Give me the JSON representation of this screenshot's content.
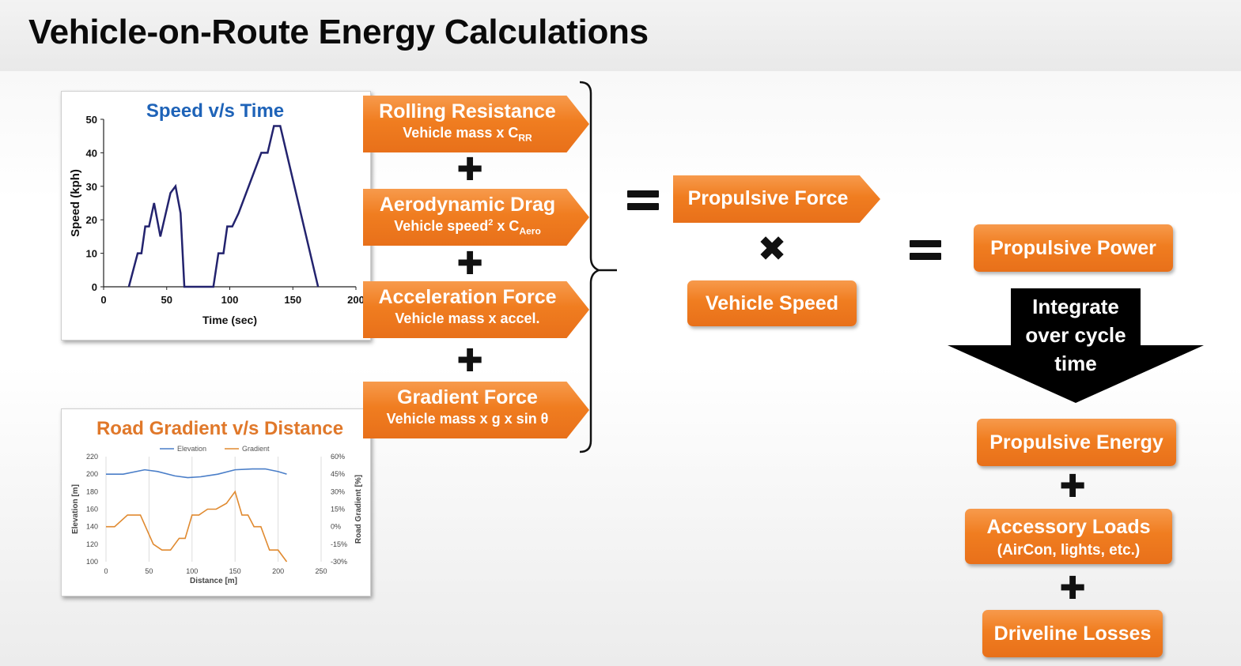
{
  "slide_title": "Vehicle-on-Route Energy Calculations",
  "speed_chart": {
    "chart_data": {
      "type": "line",
      "title": "Speed v/s Time",
      "xlabel": "Time (sec)",
      "ylabel": "Speed (kph)",
      "xlim": [
        0,
        200
      ],
      "ylim": [
        0,
        50
      ],
      "x_ticks": [
        "0",
        "50",
        "100",
        "150",
        "200"
      ],
      "y_ticks": [
        "0",
        "10",
        "20",
        "30",
        "40",
        "50"
      ],
      "series": [
        {
          "x": [
            20,
            27,
            30,
            33,
            36,
            40,
            45,
            53,
            57,
            61,
            64,
            75,
            87,
            91,
            95,
            98,
            102,
            107,
            115,
            125,
            130,
            135,
            140,
            170
          ],
          "y": [
            0,
            10,
            10,
            18,
            18,
            25,
            15,
            28,
            30,
            22,
            0,
            0,
            0,
            10,
            10,
            18,
            18,
            22,
            30,
            40,
            40,
            48,
            48,
            0
          ]
        }
      ],
      "color": "#23236e"
    }
  },
  "gradient_chart": {
    "chart_data": {
      "type": "line",
      "title": "Road Gradient v/s Distance",
      "xlabel": "Distance [m]",
      "ylabel": "Elevation [m]",
      "y2label": "Road Gradient [%]",
      "xlim": [
        0,
        250
      ],
      "ylim": [
        100,
        220
      ],
      "y2lim": [
        -30,
        60
      ],
      "x_ticks": [
        "0",
        "50",
        "100",
        "150",
        "200",
        "250"
      ],
      "y_ticks": [
        "100",
        "120",
        "140",
        "160",
        "180",
        "200",
        "220"
      ],
      "y2_ticks": [
        "-30%",
        "-15%",
        "0%",
        "15%",
        "30%",
        "45%",
        "60%"
      ],
      "legend_position": "top",
      "series": [
        {
          "name": "Elevation",
          "color": "#4a7ec8",
          "x": [
            0,
            20,
            45,
            60,
            80,
            95,
            110,
            130,
            150,
            170,
            185,
            200,
            210
          ],
          "y": [
            200,
            200,
            205,
            203,
            198,
            196,
            197,
            200,
            205,
            206,
            206,
            203,
            200
          ]
        },
        {
          "name": "Gradient",
          "color": "#e08a30",
          "y_axis": "right",
          "x": [
            0,
            10,
            25,
            40,
            55,
            65,
            75,
            85,
            92,
            100,
            108,
            118,
            128,
            140,
            150,
            158,
            165,
            172,
            180,
            190,
            200,
            210
          ],
          "y": [
            0,
            0,
            10,
            10,
            -15,
            -20,
            -20,
            -10,
            -10,
            10,
            10,
            15,
            15,
            20,
            30,
            10,
            10,
            0,
            0,
            -20,
            -20,
            -30
          ]
        }
      ]
    }
  },
  "forces": [
    {
      "title": "Rolling Resistance",
      "formula": "Vehicle mass x C",
      "subscript": "RR"
    },
    {
      "title": "Aerodynamic Drag",
      "formula": "Vehicle speed",
      "superscript": "2",
      "formula_tail": " x C",
      "subscript": "Aero"
    },
    {
      "title": "Acceleration Force",
      "formula": "Vehicle mass x accel."
    },
    {
      "title": "Gradient Force",
      "formula": "Vehicle mass x g x sin θ"
    }
  ],
  "operators": {
    "plus": "✚",
    "times": "✖"
  },
  "propulsive_force": "Propulsive Force",
  "vehicle_speed": "Vehicle Speed",
  "propulsive_power": "Propulsive Power",
  "integrate_label": [
    "Integrate",
    "over cycle",
    "time"
  ],
  "propulsive_energy": "Propulsive Energy",
  "accessory_loads": {
    "title": "Accessory Loads",
    "detail": "(AirCon, lights, etc.)"
  },
  "driveline_losses": "Driveline Losses"
}
